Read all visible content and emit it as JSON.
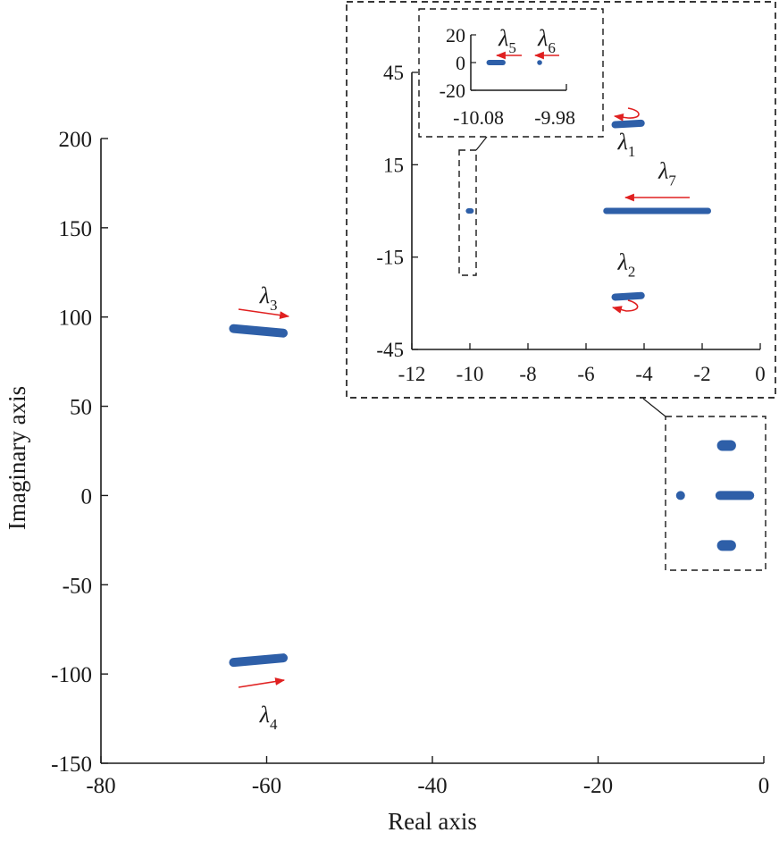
{
  "chart_data": [
    {
      "type": "scatter",
      "name_hint": "main",
      "xlabel": "Real axis",
      "ylabel": "Imaginary axis",
      "xlim": [
        -80,
        0
      ],
      "ylim": [
        -150,
        200
      ],
      "x_ticks": [
        -80,
        -60,
        -40,
        -20,
        0
      ],
      "y_ticks": [
        -150,
        -100,
        -50,
        0,
        50,
        100,
        150,
        200
      ],
      "x_tick_labels": [
        "-80",
        "-60",
        "-40",
        "-20",
        "0"
      ],
      "y_tick_labels": [
        "-150",
        "-100",
        "-50",
        "0",
        "50",
        "100",
        "150",
        "200"
      ],
      "marker_color": "#2e5fa8",
      "arrow_color": "#e02020",
      "series": [
        {
          "x": [
            -64,
            -58
          ],
          "y": [
            93.5,
            91
          ]
        },
        {
          "x": [
            -64,
            -58
          ],
          "y": [
            -93.5,
            -91
          ]
        },
        {
          "x": [
            -5,
            -4
          ],
          "y": [
            28,
            28
          ]
        },
        {
          "x": [
            -5,
            -4
          ],
          "y": [
            -28,
            -28
          ]
        },
        {
          "x": [
            -5.3,
            -1.7
          ],
          "y": [
            0,
            0
          ]
        },
        {
          "x": [
            -10.05,
            -10.05
          ],
          "y": [
            0,
            0
          ]
        }
      ],
      "annotations": [
        {
          "symbol": "λ",
          "sub": "3",
          "x": -63,
          "y": 113
        },
        {
          "symbol": "λ",
          "sub": "4",
          "x": -63,
          "y": -122
        }
      ]
    },
    {
      "type": "scatter",
      "name_hint": "zoom",
      "xlim": [
        -12,
        0
      ],
      "ylim": [
        -45,
        45
      ],
      "x_ticks": [
        -12,
        -10,
        -8,
        -6,
        -4,
        -2,
        0
      ],
      "y_ticks": [
        -45,
        -15,
        15,
        45
      ],
      "x_tick_labels": [
        "-12",
        "-10",
        "-8",
        "-6",
        "-4",
        "-2",
        "0"
      ],
      "y_tick_labels": [
        "-45",
        "-15",
        "15",
        "45"
      ],
      "series": [
        {
          "x": [
            -5.0,
            -4.1
          ],
          "y": [
            28,
            28.5
          ]
        },
        {
          "x": [
            -5.0,
            -4.1
          ],
          "y": [
            -28,
            -27.5
          ]
        },
        {
          "x": [
            -5.3,
            -1.8
          ],
          "y": [
            0,
            0
          ]
        },
        {
          "x": [
            -10.05,
            -10.05
          ],
          "y": [
            0,
            0
          ]
        }
      ],
      "annotations": [
        {
          "symbol": "λ",
          "sub": "1",
          "label_x": -4.6,
          "label_y": 20
        },
        {
          "symbol": "λ",
          "sub": "2",
          "label_x": -4.6,
          "label_y": -19
        },
        {
          "symbol": "λ",
          "sub": "7",
          "label_x": -3.2,
          "label_y": 10
        }
      ]
    },
    {
      "type": "scatter",
      "name_hint": "zoom2",
      "xlim": [
        -10.09,
        -9.965
      ],
      "ylim": [
        -20,
        20
      ],
      "x_ticks": [
        -10.08,
        -9.98
      ],
      "y_ticks": [
        -20,
        0,
        20
      ],
      "x_tick_labels": [
        "-10.08",
        "-9.98"
      ],
      "y_tick_labels": [
        "-20",
        "0",
        "20"
      ],
      "series": [
        {
          "x": [
            -10.066,
            -10.048
          ],
          "y": [
            0,
            0
          ]
        },
        {
          "x": [
            -10.0,
            -10.0
          ],
          "y": [
            0,
            0
          ]
        }
      ],
      "annotations": [
        {
          "symbol": "λ",
          "sub": "5"
        },
        {
          "symbol": "λ",
          "sub": "6"
        }
      ]
    }
  ]
}
